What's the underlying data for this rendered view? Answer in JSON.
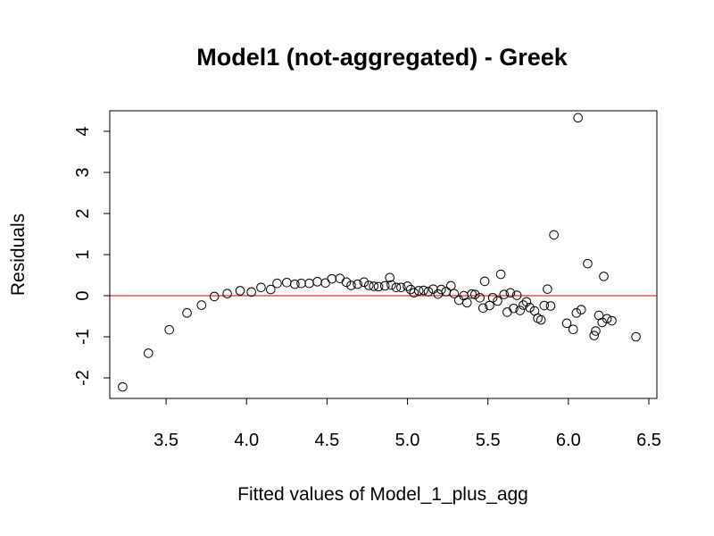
{
  "chart_data": {
    "type": "scatter",
    "title": "Model1 (not-aggregated) - Greek",
    "xlabel": "Fitted values of Model_1_plus_agg",
    "ylabel": "Residuals",
    "xlim": [
      3.15,
      6.55
    ],
    "ylim": [
      -2.5,
      4.5
    ],
    "x_ticks": [
      "3.5",
      "4.0",
      "4.5",
      "5.0",
      "5.5",
      "6.0",
      "6.5"
    ],
    "y_ticks": [
      "-2",
      "-1",
      "0",
      "1",
      "2",
      "3",
      "4"
    ],
    "reference_line": {
      "y": 0,
      "color": "#cc0000"
    },
    "point_color": "#000000",
    "points": [
      [
        3.23,
        -2.22
      ],
      [
        3.39,
        -1.4
      ],
      [
        3.52,
        -0.83
      ],
      [
        3.63,
        -0.42
      ],
      [
        3.72,
        -0.23
      ],
      [
        3.8,
        -0.02
      ],
      [
        3.88,
        0.05
      ],
      [
        3.96,
        0.12
      ],
      [
        4.03,
        0.09
      ],
      [
        4.09,
        0.2
      ],
      [
        4.15,
        0.15
      ],
      [
        4.19,
        0.3
      ],
      [
        4.25,
        0.32
      ],
      [
        4.3,
        0.28
      ],
      [
        4.34,
        0.3
      ],
      [
        4.39,
        0.3
      ],
      [
        4.44,
        0.34
      ],
      [
        4.49,
        0.31
      ],
      [
        4.53,
        0.41
      ],
      [
        4.58,
        0.42
      ],
      [
        4.62,
        0.33
      ],
      [
        4.65,
        0.25
      ],
      [
        4.69,
        0.28
      ],
      [
        4.73,
        0.33
      ],
      [
        4.76,
        0.25
      ],
      [
        4.79,
        0.23
      ],
      [
        4.82,
        0.22
      ],
      [
        4.86,
        0.24
      ],
      [
        4.89,
        0.44
      ],
      [
        4.9,
        0.26
      ],
      [
        4.93,
        0.2
      ],
      [
        4.96,
        0.2
      ],
      [
        5.0,
        0.23
      ],
      [
        5.02,
        0.15
      ],
      [
        5.04,
        0.07
      ],
      [
        5.07,
        0.12
      ],
      [
        5.1,
        0.13
      ],
      [
        5.13,
        0.1
      ],
      [
        5.16,
        0.16
      ],
      [
        5.19,
        0.04
      ],
      [
        5.21,
        0.15
      ],
      [
        5.24,
        0.1
      ],
      [
        5.27,
        0.24
      ],
      [
        5.29,
        0.05
      ],
      [
        5.32,
        -0.11
      ],
      [
        5.35,
        0.0
      ],
      [
        5.37,
        -0.17
      ],
      [
        5.4,
        0.04
      ],
      [
        5.42,
        0.03
      ],
      [
        5.45,
        -0.05
      ],
      [
        5.47,
        -0.3
      ],
      [
        5.48,
        0.35
      ],
      [
        5.51,
        -0.24
      ],
      [
        5.53,
        -0.05
      ],
      [
        5.56,
        -0.13
      ],
      [
        5.58,
        0.52
      ],
      [
        5.6,
        0.03
      ],
      [
        5.62,
        -0.4
      ],
      [
        5.64,
        0.07
      ],
      [
        5.66,
        -0.31
      ],
      [
        5.68,
        0.01
      ],
      [
        5.7,
        -0.36
      ],
      [
        5.72,
        -0.23
      ],
      [
        5.74,
        -0.15
      ],
      [
        5.76,
        -0.29
      ],
      [
        5.79,
        -0.37
      ],
      [
        5.81,
        -0.55
      ],
      [
        5.83,
        -0.59
      ],
      [
        5.85,
        -0.24
      ],
      [
        5.87,
        0.16
      ],
      [
        5.89,
        -0.25
      ],
      [
        5.91,
        1.48
      ],
      [
        5.99,
        -0.67
      ],
      [
        6.03,
        -0.82
      ],
      [
        6.05,
        -0.42
      ],
      [
        6.06,
        4.33
      ],
      [
        6.08,
        -0.34
      ],
      [
        6.12,
        0.78
      ],
      [
        6.16,
        -0.97
      ],
      [
        6.17,
        -0.86
      ],
      [
        6.19,
        -0.48
      ],
      [
        6.21,
        -0.65
      ],
      [
        6.22,
        0.47
      ],
      [
        6.24,
        -0.56
      ],
      [
        6.27,
        -0.61
      ],
      [
        6.42,
        -1.0
      ]
    ]
  }
}
